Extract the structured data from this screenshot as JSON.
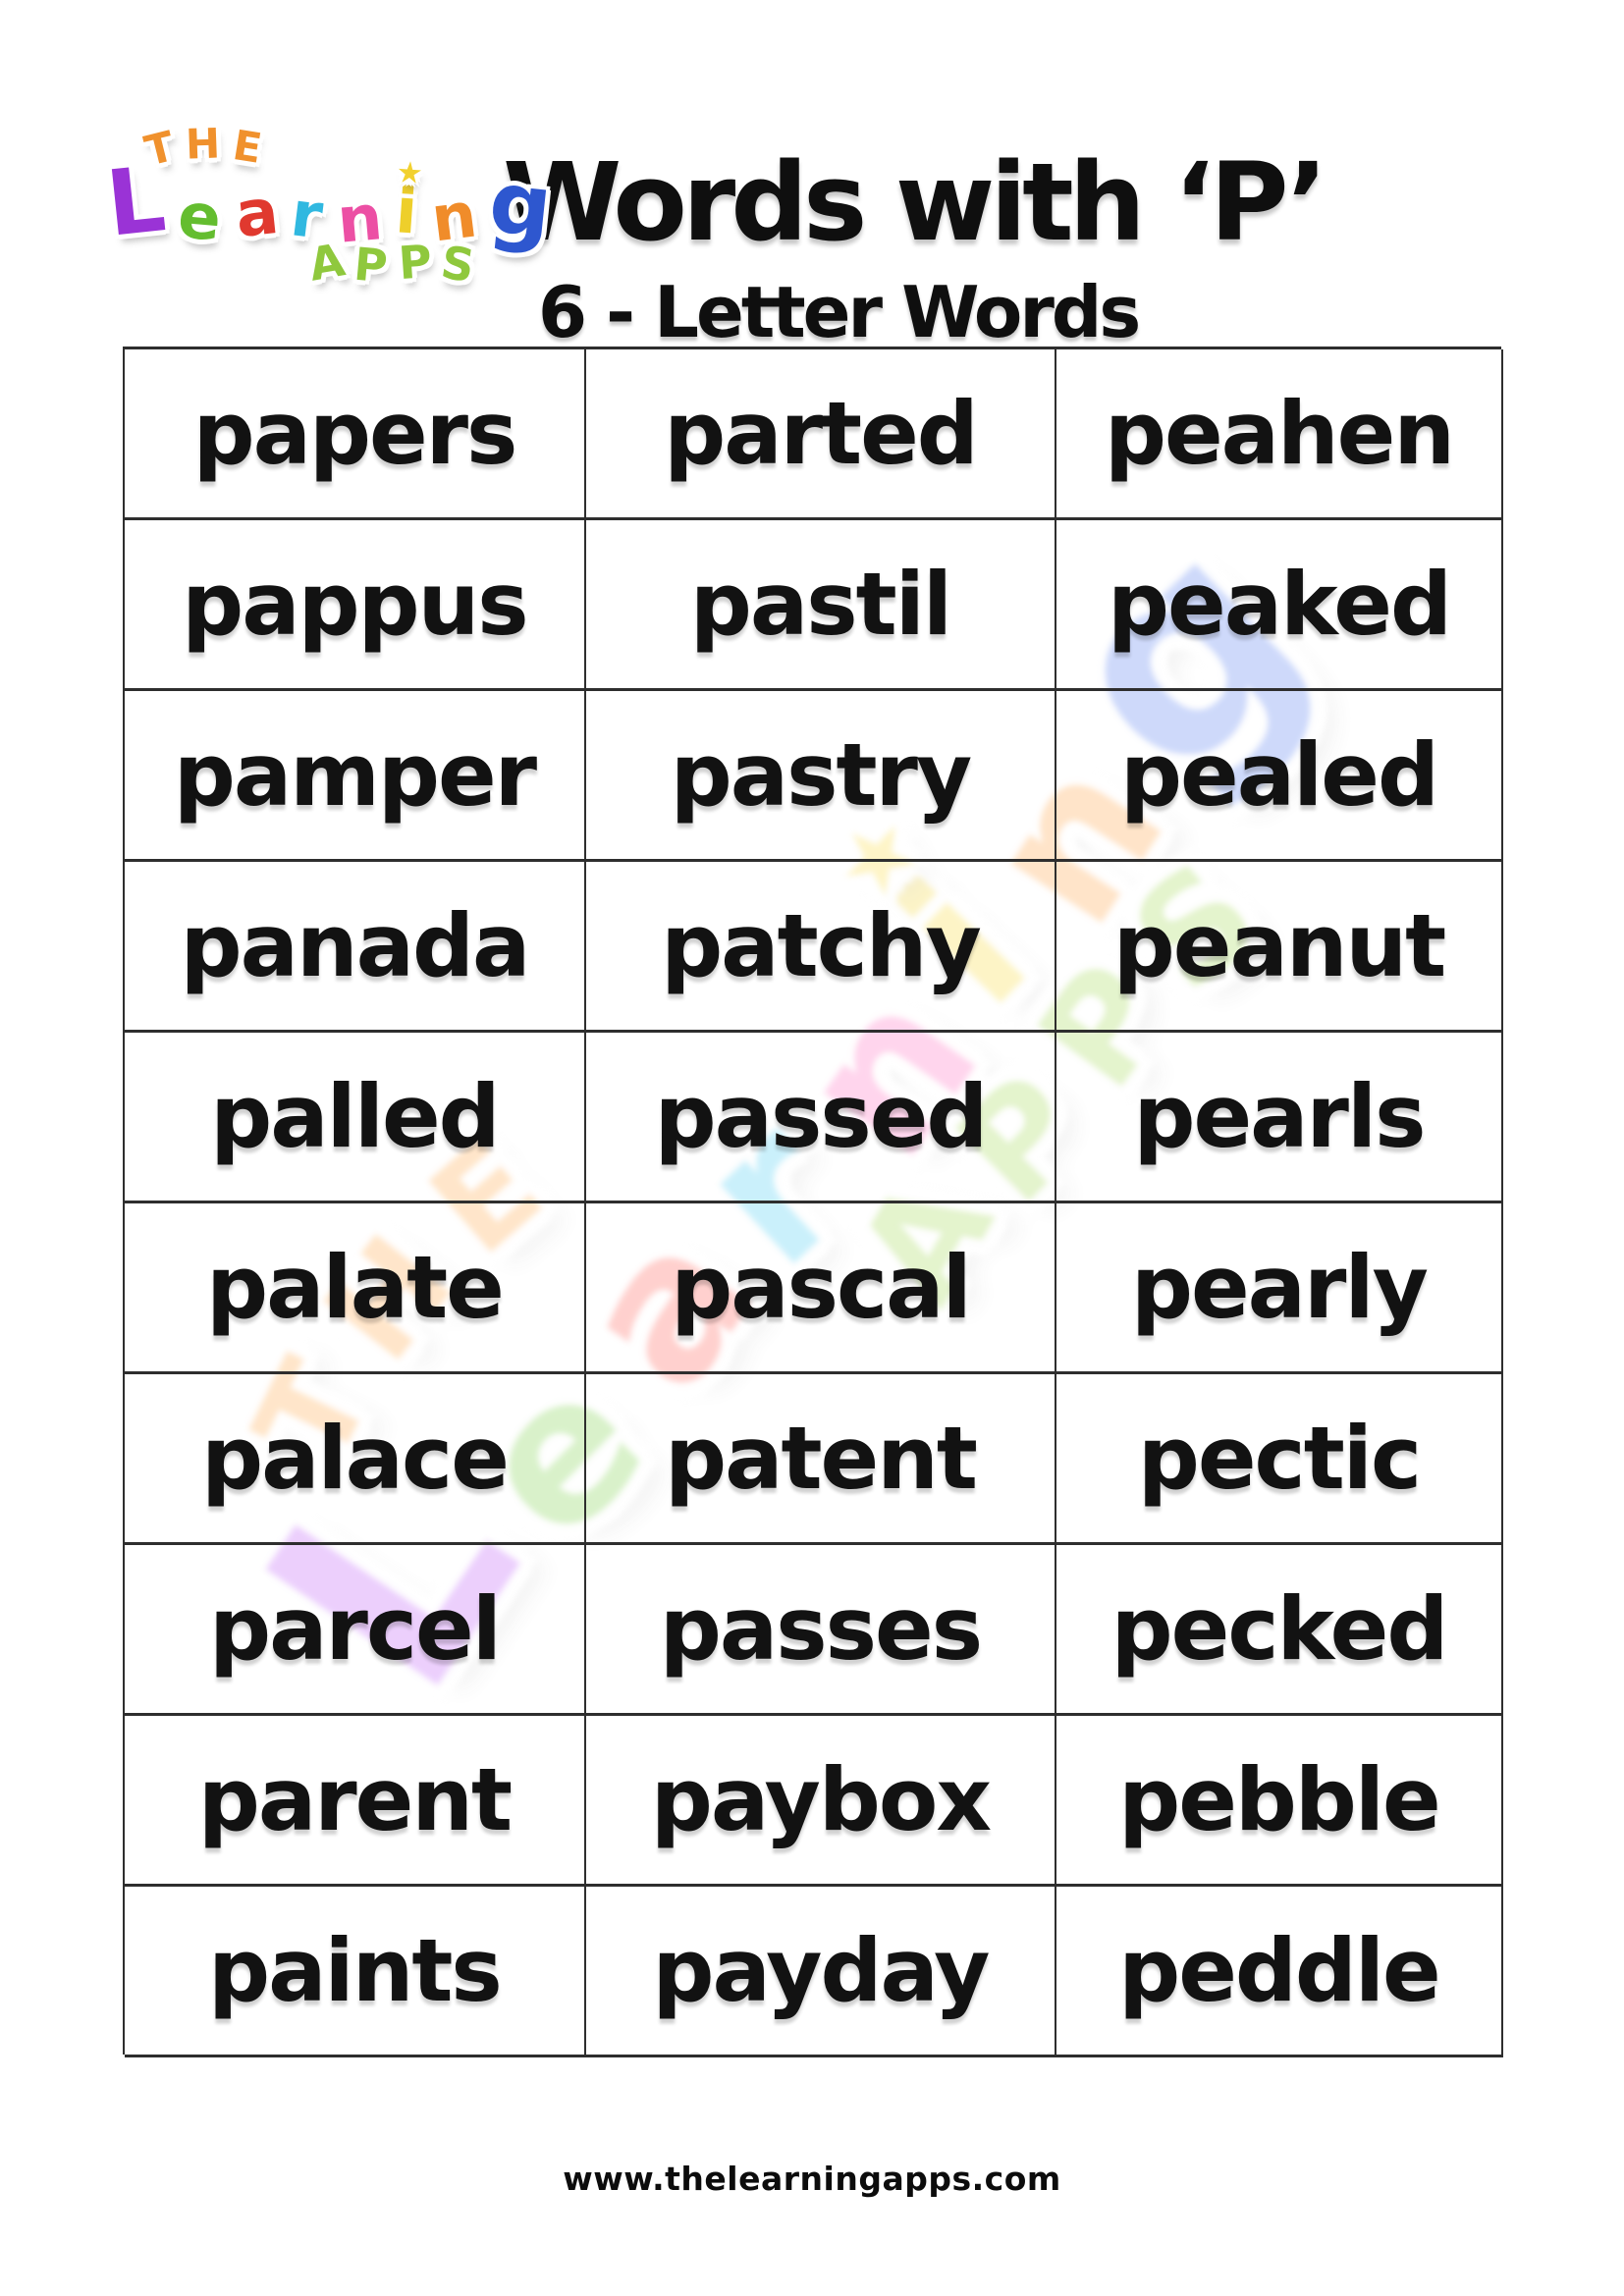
{
  "header": {
    "logo": {
      "the": [
        "T",
        "H",
        "E"
      ],
      "word": [
        "L",
        "e",
        "a",
        "r",
        "n",
        "i",
        "n",
        "g"
      ],
      "apps": [
        "A",
        "P",
        "P",
        "S"
      ],
      "star": "★",
      "colors": {
        "the": "#f0912d",
        "L": "#9a33d6",
        "e": "#64bd2f",
        "a": "#e0392f",
        "r": "#30b8e0",
        "n1": "#ec4fa4",
        "i": "#eecf2b",
        "star": "#f2d12e",
        "n2": "#f08c2a",
        "g": "#2e57cf",
        "apps": "#8fc83d"
      }
    },
    "title": "Words with ‘P’",
    "subtitle": "6 - Letter Words"
  },
  "table": {
    "words": [
      [
        "papers",
        "parted",
        "peahen"
      ],
      [
        "pappus",
        "pastil",
        "peaked"
      ],
      [
        "pamper",
        "pastry",
        "pealed"
      ],
      [
        "panada",
        "patchy",
        "peanut"
      ],
      [
        "palled",
        "passed",
        "pearls"
      ],
      [
        "palate",
        "pascal",
        "pearly"
      ],
      [
        "palace",
        "patent",
        "pectic"
      ],
      [
        "parcel",
        "passes",
        "pecked"
      ],
      [
        "parent",
        "paybox",
        "pebble"
      ],
      [
        "paints",
        "payday",
        "peddle"
      ]
    ]
  },
  "footer": {
    "url": "www.thelearningapps.com"
  }
}
